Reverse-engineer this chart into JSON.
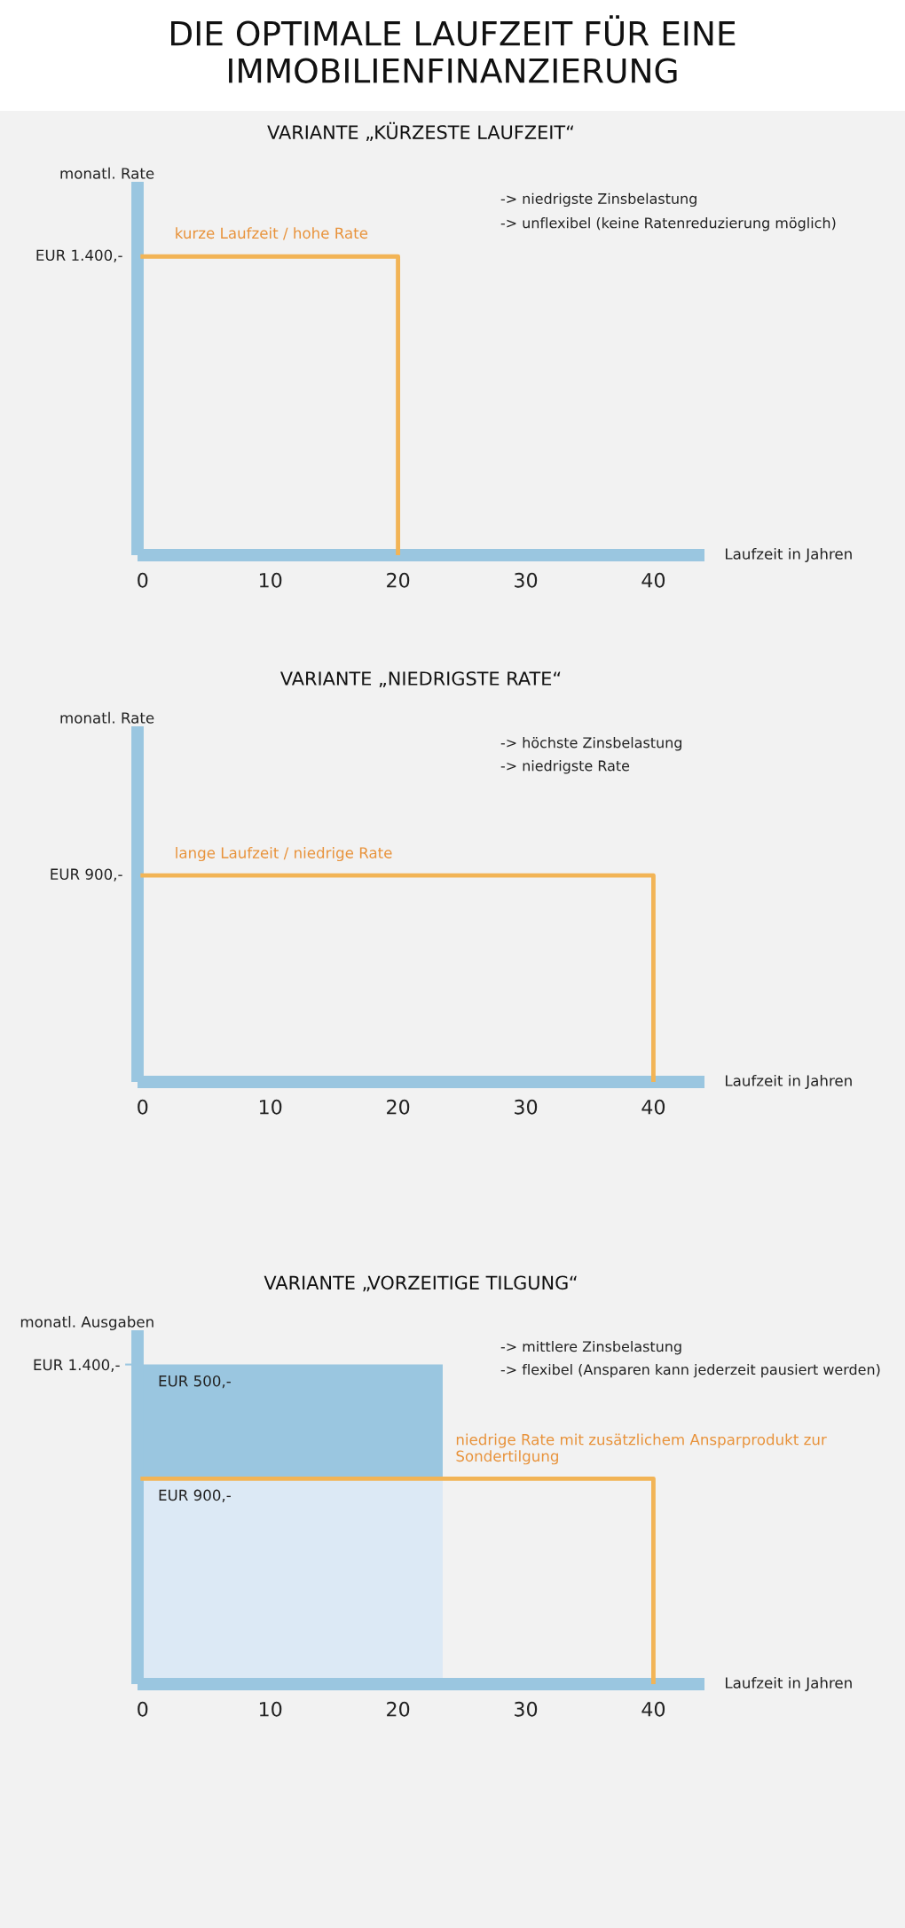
{
  "chart_data": [
    {
      "type": "line",
      "title": "DIE OPTIMALE LAUFZEIT FÜR EINE IMMOBILIENFINANZIERUNG",
      "subtitle": "VARIANTE „KÜRZESTE LAUFZEIT“",
      "xlabel": "Laufzeit in Jahren",
      "ylabel": "monatl. Rate",
      "series": [
        {
          "name": "kurze Laufzeit / hohe Rate",
          "color": "#f2b456",
          "x": [
            0,
            20,
            20
          ],
          "values": [
            1400,
            1400,
            0
          ],
          "value_labels": [
            "EUR 1.400,-",
            null,
            null
          ]
        }
      ],
      "xlim": [
        -0.4,
        44
      ],
      "xticks": [
        0,
        10,
        20,
        30,
        40
      ],
      "ylim": [
        0,
        1750
      ],
      "grid": false,
      "legend": false,
      "annotations": [
        "-> niedrigste Zinsbelastung",
        "-> unflexibel (keine Ratenreduzierung möglich)"
      ]
    },
    {
      "type": "line",
      "title": "VARIANTE „NIEDRIGSTE RATE“",
      "xlabel": "Laufzeit in Jahren",
      "ylabel": "monatl. Rate",
      "series": [
        {
          "name": "lange Laufzeit / niedrige Rate",
          "color": "#f2b456",
          "x": [
            0,
            40,
            40
          ],
          "values": [
            900,
            900,
            0
          ],
          "value_labels": [
            "EUR 900,-",
            null,
            null
          ]
        }
      ],
      "xlim": [
        -0.4,
        44
      ],
      "xticks": [
        0,
        10,
        20,
        30,
        40
      ],
      "ylim": [
        0,
        1550
      ],
      "grid": false,
      "legend": false,
      "annotations": [
        "-> höchste Zinsbelastung",
        "-> niedrigste Rate"
      ]
    },
    {
      "type": "area",
      "title": "VARIANTE „VORZEITIGE TILGUNG“",
      "xlabel": "Laufzeit in Jahren",
      "ylabel": "monatl. Ausgaben",
      "stacked": true,
      "series": [
        {
          "color": "#dce9f5",
          "x": [
            0,
            23.5
          ],
          "values": [
            900,
            900
          ],
          "value_labels": [
            "EUR 900,-",
            null
          ]
        },
        {
          "color": "#9ac6e0",
          "x": [
            0,
            23.5
          ],
          "values": [
            500,
            500
          ],
          "value_labels": [
            "EUR 500,-",
            null
          ]
        },
        {
          "name": "niedrige Rate mit zusätzlichem Ansparprodukt zur Sondertilgung",
          "type": "line",
          "color": "#f2b456",
          "x": [
            0,
            40,
            40
          ],
          "values": [
            900,
            900,
            0
          ]
        }
      ],
      "xlim": [
        -0.4,
        44
      ],
      "xticks": [
        0,
        10,
        20,
        30,
        40
      ],
      "ylim": [
        0,
        1550
      ],
      "yticks": [
        {
          "value": 1400,
          "label": "EUR 1.400,-"
        }
      ],
      "grid": false,
      "legend": false,
      "annotations": [
        "-> mittlere Zinsbelastung",
        "-> flexibel (Ansparen kann jederzeit pausiert werden)"
      ]
    }
  ]
}
